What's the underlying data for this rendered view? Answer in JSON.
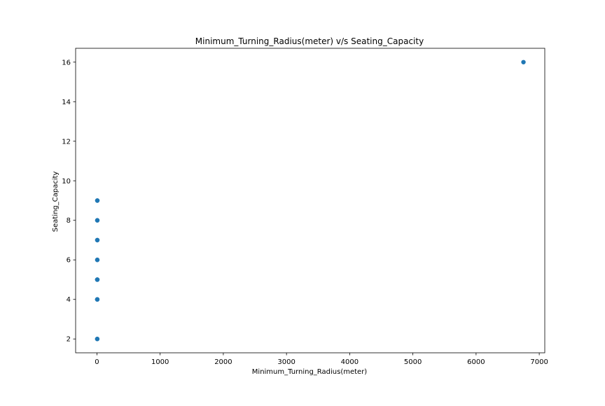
{
  "chart_data": {
    "type": "scatter",
    "title": "Minimum_Turning_Radius(meter) v/s Seating_Capacity",
    "xlabel": "Minimum_Turning_Radius(meter)",
    "ylabel": "Seating_Capacity",
    "xlim": [
      -337.5,
      7087.5
    ],
    "ylim": [
      1.3,
      16.7
    ],
    "xticks": [
      0,
      1000,
      2000,
      3000,
      4000,
      5000,
      6000,
      7000
    ],
    "yticks": [
      2,
      4,
      6,
      8,
      10,
      12,
      14,
      16
    ],
    "grid": false,
    "legend": "none",
    "marker_color": "#1f77b4",
    "points": [
      {
        "x": 4.5,
        "y": 2
      },
      {
        "x": 5.0,
        "y": 2
      },
      {
        "x": 5.2,
        "y": 4
      },
      {
        "x": 4.8,
        "y": 4
      },
      {
        "x": 5.5,
        "y": 4
      },
      {
        "x": 5.6,
        "y": 5
      },
      {
        "x": 5.0,
        "y": 5
      },
      {
        "x": 5.8,
        "y": 5
      },
      {
        "x": 5.9,
        "y": 6
      },
      {
        "x": 5.3,
        "y": 6
      },
      {
        "x": 5.6,
        "y": 7
      },
      {
        "x": 6.0,
        "y": 7
      },
      {
        "x": 5.4,
        "y": 8
      },
      {
        "x": 6.2,
        "y": 8
      },
      {
        "x": 5.8,
        "y": 9
      },
      {
        "x": 6.1,
        "y": 9
      },
      {
        "x": 6750,
        "y": 16
      }
    ]
  }
}
